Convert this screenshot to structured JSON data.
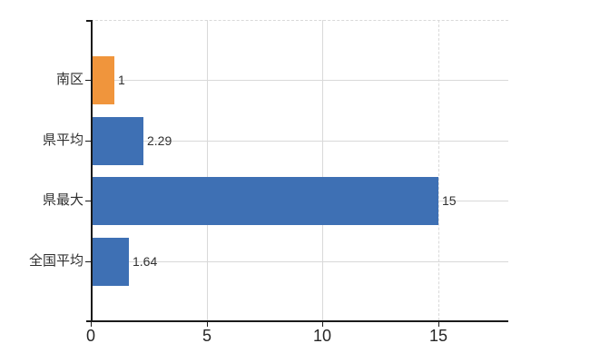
{
  "chart_data": {
    "type": "bar",
    "orientation": "horizontal",
    "title": "",
    "xlabel": "",
    "ylabel": "",
    "categories": [
      "南区",
      "県平均",
      "県最大",
      "全国平均"
    ],
    "values": [
      1,
      2.29,
      15,
      1.64
    ],
    "value_labels": [
      "1",
      "2.29",
      "15",
      "1.64"
    ],
    "bar_colors": [
      "#F0953C",
      "#3E70B4",
      "#3E70B4",
      "#3E70B4"
    ],
    "x_tick_labels": [
      "0",
      "5",
      "10",
      "15"
    ],
    "x_tick_values": [
      0,
      5,
      10,
      15
    ],
    "xlim": [
      0,
      18
    ],
    "grid": "on",
    "gridline_style": {
      "solid_at": [
        5,
        10
      ],
      "dashed_at": [
        15
      ],
      "top_border": "dashed"
    },
    "legend_position": "none",
    "colors": {
      "bar_blue": "#3E70B4",
      "bar_orange": "#F0953C",
      "grid": "#D9D9D9",
      "axis": "#1A1A1A",
      "text": "#303030",
      "background": "#FFFFFF"
    }
  }
}
